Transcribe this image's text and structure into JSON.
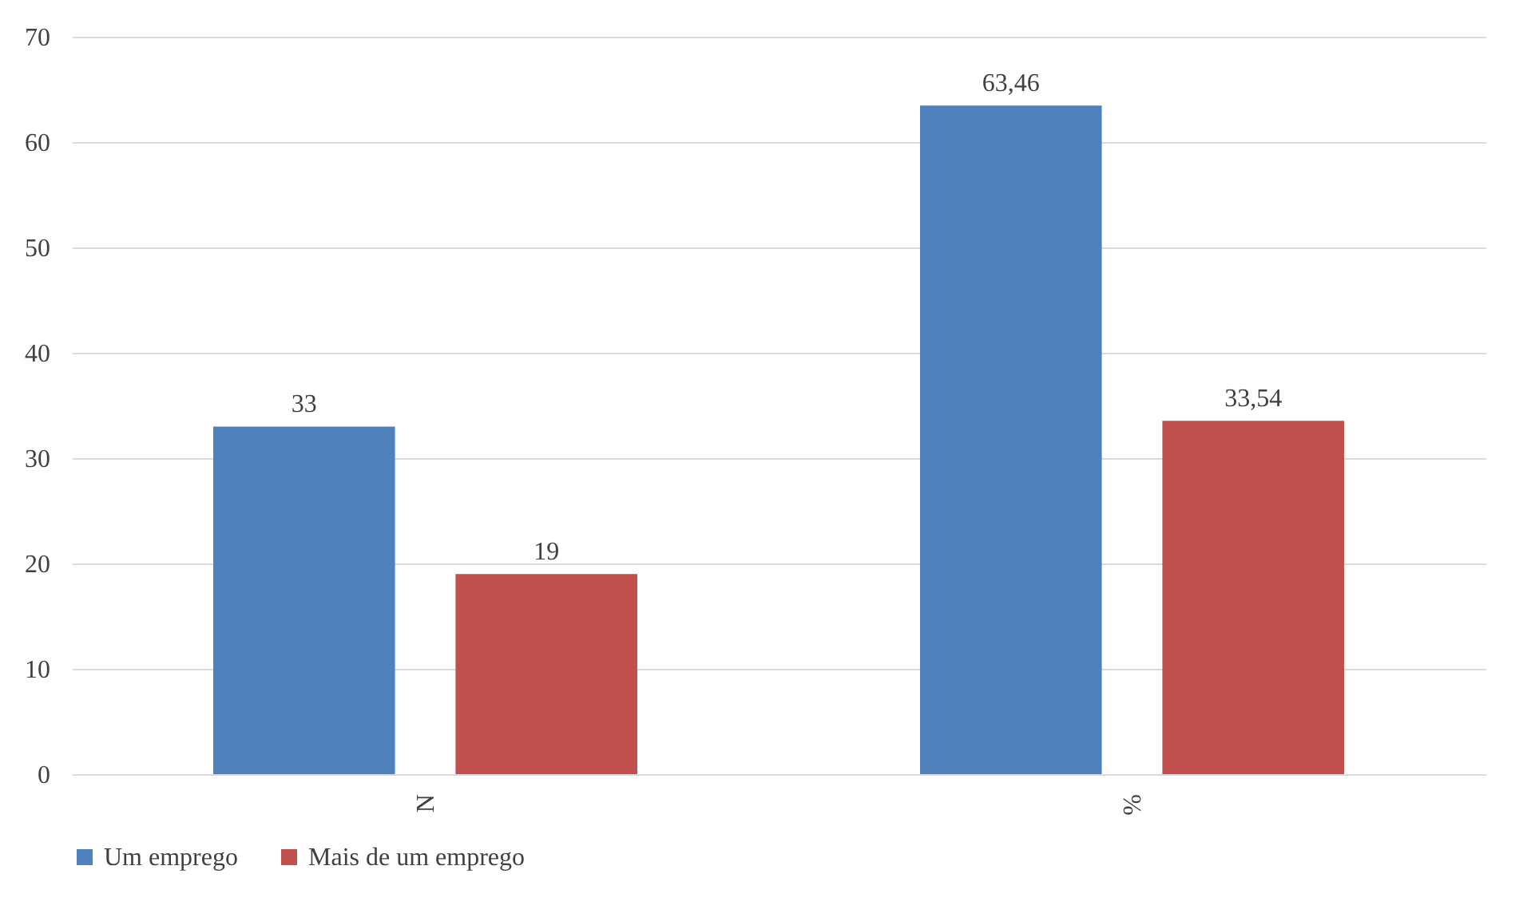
{
  "chart_data": {
    "type": "bar",
    "categories": [
      "N",
      "%"
    ],
    "series": [
      {
        "name": "Um emprego",
        "color": "#4f81bd",
        "values": [
          33,
          63.46
        ],
        "value_labels": [
          "33",
          "63,46"
        ]
      },
      {
        "name": "Mais de um emprego",
        "color": "#c0504d",
        "values": [
          19,
          33.54
        ],
        "value_labels": [
          "19",
          "33,54"
        ]
      }
    ],
    "ylim": [
      0,
      70
    ],
    "yticks": [
      0,
      10,
      20,
      30,
      40,
      50,
      60,
      70
    ],
    "grid": "y",
    "legend": "bottom"
  }
}
